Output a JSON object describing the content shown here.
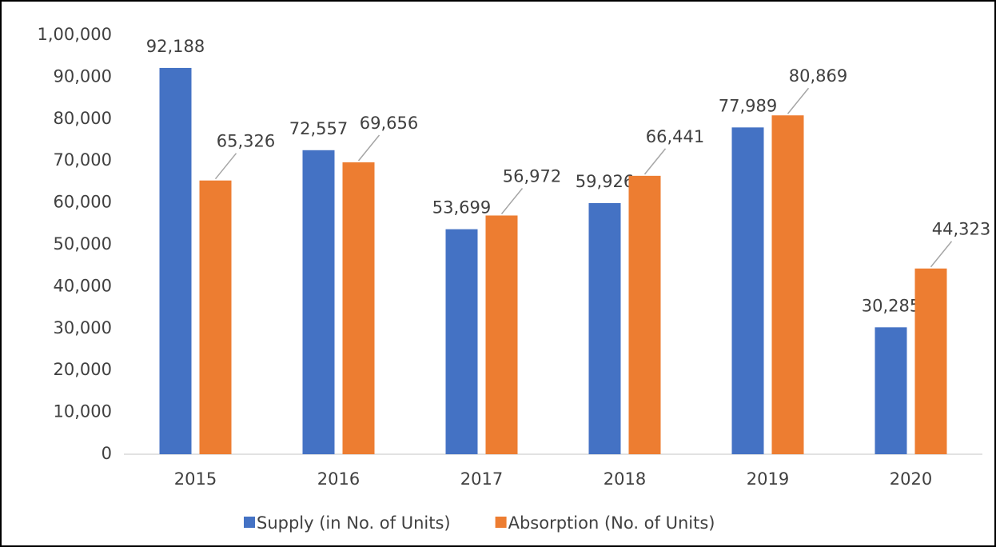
{
  "chart_data": {
    "type": "bar",
    "categories": [
      "2015",
      "2016",
      "2017",
      "2018",
      "2019",
      "2020"
    ],
    "series": [
      {
        "name": "Supply (in No. of Units)",
        "color": "#4472c4",
        "values": [
          92188,
          72557,
          53699,
          59926,
          77989,
          30285
        ],
        "value_labels": [
          "92,188",
          "72,557",
          "53,699",
          "59,926",
          "77,989",
          "30,285"
        ]
      },
      {
        "name": "Absorption (No. of Units)",
        "color": "#ed7d31",
        "values": [
          65326,
          69656,
          56972,
          66441,
          80869,
          44323
        ],
        "value_labels": [
          "65,326",
          "69,656",
          "56,972",
          "66,441",
          "80,869",
          "44,323"
        ]
      }
    ],
    "ylim": [
      0,
      100000
    ],
    "yticks": [
      0,
      {
        "value": 10000,
        "label": "10,000"
      },
      {
        "value": 20000,
        "label": "20,000"
      },
      {
        "value": 30000,
        "label": "30,000"
      },
      {
        "value": 40000,
        "label": "40,000"
      },
      {
        "value": 50000,
        "label": "50,000"
      },
      {
        "value": 60000,
        "label": "60,000"
      },
      {
        "value": 70000,
        "label": "70,000"
      },
      {
        "value": 80000,
        "label": "80,000"
      },
      {
        "value": 90000,
        "label": "90,000"
      },
      {
        "value": 100000,
        "label": "1,00,000"
      }
    ],
    "grid": false,
    "legend": "bottom"
  }
}
